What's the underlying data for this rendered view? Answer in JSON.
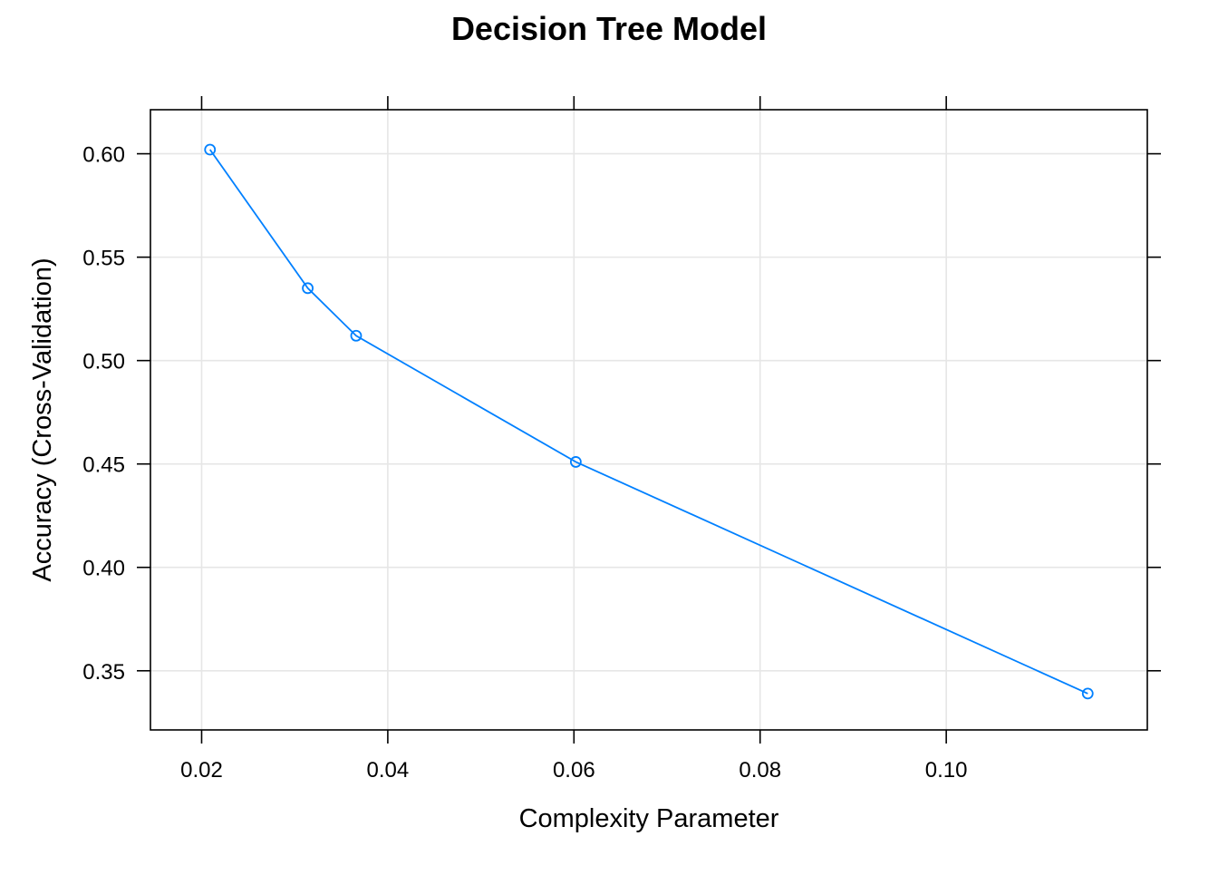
{
  "chart_data": {
    "type": "line",
    "title": "Decision Tree Model",
    "xlabel": "Complexity Parameter",
    "ylabel": "Accuracy (Cross-Validation)",
    "x": [
      0.0209,
      0.0314,
      0.0366,
      0.0602,
      0.1152
    ],
    "series": [
      {
        "values": [
          0.602,
          0.535,
          0.512,
          0.451,
          0.339
        ],
        "color": "#0080ff"
      }
    ],
    "xlim": [
      0.0145,
      0.1216
    ],
    "ylim": [
      0.3214,
      0.6213
    ],
    "xticks": [
      0.02,
      0.04,
      0.06,
      0.08,
      0.1
    ],
    "xtick_labels": [
      "0.02",
      "0.04",
      "0.06",
      "0.08",
      "0.10"
    ],
    "yticks": [
      0.35,
      0.4,
      0.45,
      0.5,
      0.55,
      0.6
    ],
    "ytick_labels": [
      "0.35",
      "0.40",
      "0.45",
      "0.50",
      "0.55",
      "0.60"
    ],
    "grid": true,
    "grid_color": "#e6e6e6",
    "frame_color": "#000000"
  }
}
